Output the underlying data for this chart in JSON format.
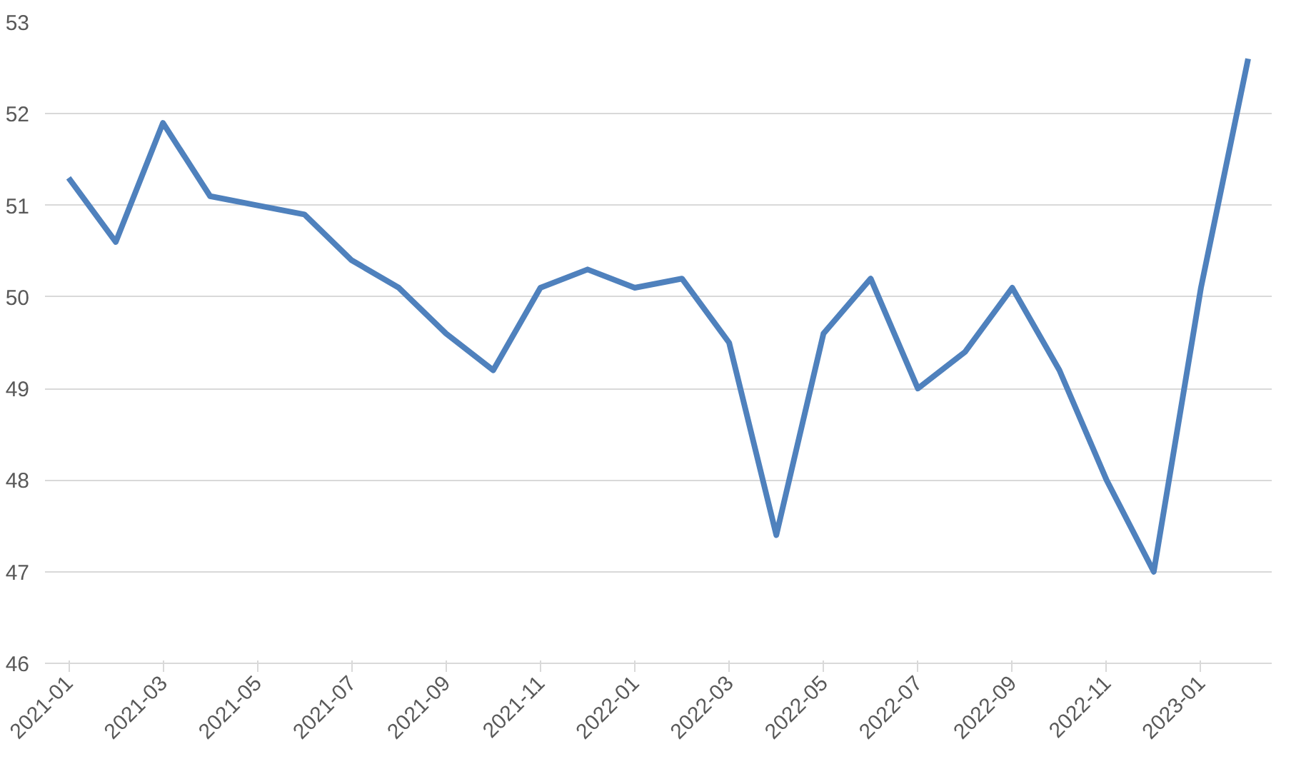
{
  "chart_data": {
    "type": "line",
    "categories": [
      "2021-01",
      null,
      "2021-03",
      null,
      "2021-05",
      null,
      "2021-07",
      null,
      "2021-09",
      null,
      "2021-11",
      null,
      "2022-01",
      null,
      "2022-03",
      null,
      "2022-05",
      null,
      "2022-07",
      null,
      "2022-09",
      null,
      "2022-11",
      null,
      "2023-01",
      null
    ],
    "series": [
      {
        "color": "#4f81bd",
        "values": [
          51.3,
          50.6,
          51.9,
          51.1,
          51.0,
          50.9,
          50.4,
          50.1,
          49.6,
          49.2,
          50.1,
          50.3,
          50.1,
          50.2,
          49.5,
          47.4,
          49.6,
          50.2,
          49.0,
          49.4,
          50.1,
          49.2,
          48.0,
          47.0,
          50.1,
          52.6
        ]
      }
    ],
    "ylim": [
      46,
      53
    ],
    "yticks": [
      46,
      47,
      48,
      49,
      50,
      51,
      52,
      53
    ],
    "grid": "y",
    "marker": "none",
    "line_style": "solid"
  }
}
